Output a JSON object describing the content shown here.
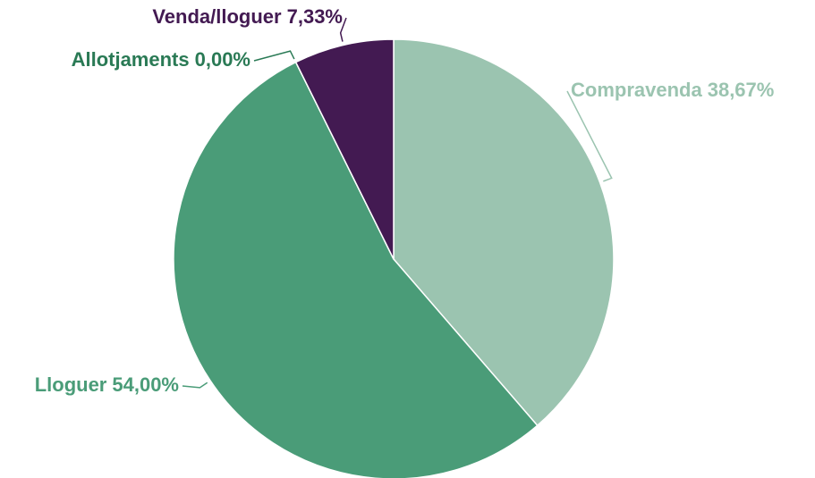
{
  "chart_data": {
    "type": "pie",
    "categories": [
      "Compravenda",
      "Lloguer",
      "Allotjaments",
      "Venda/lloguer"
    ],
    "values": [
      38.67,
      54.0,
      0.0,
      7.33
    ],
    "value_labels": [
      "38,67%",
      "54,00%",
      "0,00%",
      "7,33%"
    ],
    "colors": [
      "#9bc4b0",
      "#4a9c78",
      "#2a7a55",
      "#431a52"
    ]
  }
}
